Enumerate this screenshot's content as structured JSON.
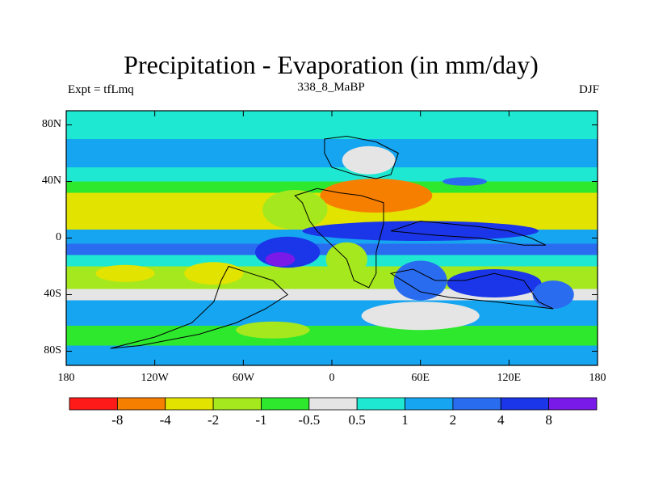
{
  "title": "Precipitation - Evaporation (in mm/day)",
  "subtitle": "338_8_MaBP",
  "left_label": "Expt = tfLmq",
  "right_label": "DJF",
  "colors": {
    "cb_neg8": "#ff1a1a",
    "cb_neg4": "#f77f00",
    "cb_neg2": "#e3e300",
    "cb_neg1": "#a5e81e",
    "cb_neg05": "#2ee82e",
    "cb_zero": "#e5e5e5",
    "cb_05": "#1ee8d2",
    "cb_1": "#16a5f0",
    "cb_2": "#2a6cf0",
    "cb_4": "#1a36e8",
    "cb_8": "#7a1ae8"
  },
  "chart_data": {
    "type": "heatmap",
    "projection": "cylindrical-equidistant",
    "x_range": [
      -180,
      180
    ],
    "y_range": [
      -90,
      90
    ],
    "x_ticks": [
      "180",
      "120W",
      "60W",
      "0",
      "60E",
      "120E",
      "180"
    ],
    "x_tick_values": [
      -180,
      -120,
      -60,
      0,
      60,
      120,
      180
    ],
    "y_ticks": [
      "80N",
      "40N",
      "0",
      "40S",
      "80S"
    ],
    "y_tick_values": [
      80,
      40,
      0,
      -40,
      -80
    ],
    "colorbar": {
      "labels": [
        "-8",
        "-4",
        "-2",
        "-1",
        "-0.5",
        "0.5",
        "1",
        "2",
        "4",
        "8"
      ],
      "bins": [
        {
          "lo": null,
          "hi": -8,
          "color_key": "cb_neg8"
        },
        {
          "lo": -8,
          "hi": -4,
          "color_key": "cb_neg4"
        },
        {
          "lo": -4,
          "hi": -2,
          "color_key": "cb_neg2"
        },
        {
          "lo": -2,
          "hi": -1,
          "color_key": "cb_neg1"
        },
        {
          "lo": -1,
          "hi": -0.5,
          "color_key": "cb_neg05"
        },
        {
          "lo": -0.5,
          "hi": 0.5,
          "color_key": "cb_zero"
        },
        {
          "lo": 0.5,
          "hi": 1,
          "color_key": "cb_05"
        },
        {
          "lo": 1,
          "hi": 2,
          "color_key": "cb_1"
        },
        {
          "lo": 2,
          "hi": 4,
          "color_key": "cb_2"
        },
        {
          "lo": 4,
          "hi": 8,
          "color_key": "cb_4"
        },
        {
          "lo": 8,
          "hi": null,
          "color_key": "cb_8"
        }
      ]
    },
    "zonal_bands": [
      {
        "lat_top": 90,
        "lat_bottom": 70,
        "value": 0.7
      },
      {
        "lat_top": 70,
        "lat_bottom": 50,
        "value": 1.5
      },
      {
        "lat_top": 50,
        "lat_bottom": 40,
        "value": 0.7
      },
      {
        "lat_top": 40,
        "lat_bottom": 32,
        "value": -0.7
      },
      {
        "lat_top": 32,
        "lat_bottom": 6,
        "value": -3
      },
      {
        "lat_top": 6,
        "lat_bottom": -4,
        "value": 1.5
      },
      {
        "lat_top": -4,
        "lat_bottom": -12,
        "value": 3
      },
      {
        "lat_top": -12,
        "lat_bottom": -20,
        "value": 0.7
      },
      {
        "lat_top": -20,
        "lat_bottom": -36,
        "value": -1.5
      },
      {
        "lat_top": -36,
        "lat_bottom": -44,
        "value": 0
      },
      {
        "lat_top": -44,
        "lat_bottom": -62,
        "value": 1.5
      },
      {
        "lat_top": -62,
        "lat_bottom": -76,
        "value": -0.7
      },
      {
        "lat_top": -76,
        "lat_bottom": -90,
        "value": 1.5
      }
    ],
    "regions": [
      {
        "lon": 25,
        "lat": 55,
        "rx": 18,
        "ry": 10,
        "value": 0
      },
      {
        "lon": 30,
        "lat": 30,
        "rx": 38,
        "ry": 12,
        "value": -5
      },
      {
        "lon": -25,
        "lat": 20,
        "rx": 22,
        "ry": 14,
        "value": -1.5
      },
      {
        "lon": 60,
        "lat": 5,
        "rx": 80,
        "ry": 7,
        "value": 5
      },
      {
        "lon": -30,
        "lat": -10,
        "rx": 22,
        "ry": 11,
        "value": 6
      },
      {
        "lon": -35,
        "lat": -15,
        "rx": 10,
        "ry": 5,
        "value": 10
      },
      {
        "lon": 10,
        "lat": -15,
        "rx": 14,
        "ry": 12,
        "value": -1.5
      },
      {
        "lon": 60,
        "lat": -30,
        "rx": 18,
        "ry": 14,
        "value": 3
      },
      {
        "lon": 110,
        "lat": -32,
        "rx": 32,
        "ry": 10,
        "value": 5
      },
      {
        "lon": 150,
        "lat": -40,
        "rx": 14,
        "ry": 10,
        "value": 3
      },
      {
        "lon": -80,
        "lat": -25,
        "rx": 20,
        "ry": 8,
        "value": -3
      },
      {
        "lon": -140,
        "lat": -25,
        "rx": 20,
        "ry": 6,
        "value": -3
      },
      {
        "lon": 60,
        "lat": -55,
        "rx": 40,
        "ry": 10,
        "value": 0
      },
      {
        "lon": -40,
        "lat": -65,
        "rx": 25,
        "ry": 6,
        "value": -1.5
      },
      {
        "lon": 90,
        "lat": 40,
        "rx": 15,
        "ry": 3,
        "value": 3
      }
    ]
  }
}
